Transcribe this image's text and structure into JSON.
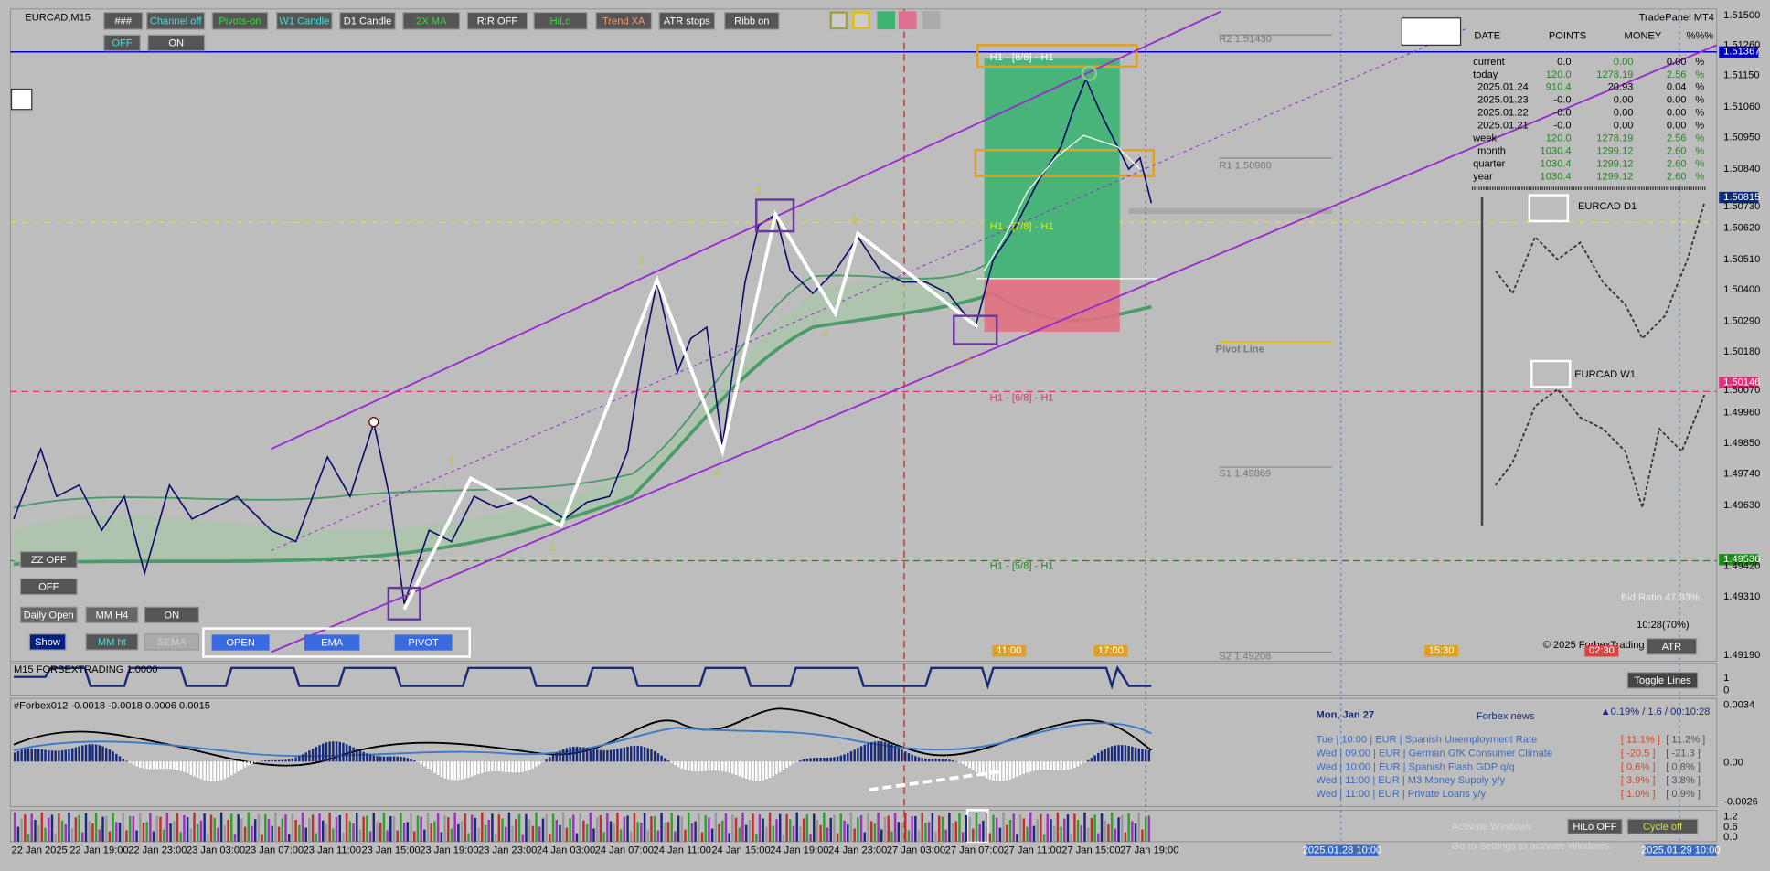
{
  "header": {
    "symbol": "EURCAD,M15",
    "brand": "TradePanel MT4"
  },
  "toolbar": [
    "###",
    "Channel off",
    "Pivots-on",
    "W1 Candle",
    "D1 Candle",
    "2X MA",
    "R:R OFF",
    "HiLo",
    "Trend XA",
    "ATR stops",
    "Ribb on"
  ],
  "toolbar2": [
    "OFF",
    "ON"
  ],
  "left_buttons": [
    "ZZ OFF",
    "OFF",
    "Daily Open",
    "MM H4",
    "ON",
    "Show",
    "MM ht",
    "SEMA"
  ],
  "bottom_buttons": [
    "OPEN",
    "EMA",
    "PIVOT"
  ],
  "wave_labels": [
    "1",
    "2",
    "3",
    "4",
    "5",
    "a",
    "b",
    "c"
  ],
  "levels": [
    "H1 - [8/8] - H1",
    "H1 - [7/8] - H1",
    "H1 - [6/8] - H1",
    "H1 - [5/8] - H1",
    "R2 1.51430",
    "R1 1.50980",
    "Pivot Line",
    "S1 1.49869",
    "S2 1.49208"
  ],
  "price_axis": [
    "1.51500",
    "1.51367",
    "1.51260",
    "1.51150",
    "1.51060",
    "1.50950",
    "1.50840",
    "1.50815",
    "1.50730",
    "1.50620",
    "1.50510",
    "1.50400",
    "1.50290",
    "1.50180",
    "1.50146",
    "1.50070",
    "1.49960",
    "1.49850",
    "1.49740",
    "1.49630",
    "1.49536",
    "1.49420",
    "1.49310",
    "1.49190"
  ],
  "indicator_axis": [
    "1",
    "0",
    "0.0034",
    "0.00",
    "-0.0026",
    "1.2",
    "0.6",
    "0.0"
  ],
  "stats": {
    "headers": [
      "DATE",
      "POINTS",
      "MONEY",
      "%%",
      "%"
    ],
    "rows": [
      [
        "current",
        "0.0",
        "0.00",
        "0.00",
        "%"
      ],
      [
        "today",
        "120.0",
        "1278.19",
        "2.56",
        "%"
      ],
      [
        "2025.01.24",
        "910.4",
        "20.93",
        "0.04",
        "%"
      ],
      [
        "2025.01.23",
        "-0.0",
        "0.00",
        "0.00",
        "%"
      ],
      [
        "2025.01.22",
        "-0.0",
        "0.00",
        "0.00",
        "%"
      ],
      [
        "2025.01.21",
        "-0.0",
        "0.00",
        "0.00",
        "%"
      ],
      [
        "week",
        "120.0",
        "1278.19",
        "2.56",
        "%"
      ],
      [
        "month",
        "1030.4",
        "1299.12",
        "2.60",
        "%"
      ],
      [
        "quarter",
        "1030.4",
        "1299.12",
        "2.60",
        "%"
      ],
      [
        "year",
        "1030.4",
        "1299.12",
        "2.60",
        "%"
      ]
    ]
  },
  "mini_charts": [
    "EURCAD D1",
    "EURCAD W1"
  ],
  "info": [
    "Bid Ratio 47.93%",
    "10:28(70%)",
    "© 2025 ForbexTrading",
    "ATR"
  ],
  "time_markers": [
    "11:00",
    "17:00",
    "15:30",
    "02:30"
  ],
  "indicators": [
    "M15 FORBEXTRADING 1.0000",
    "#Forbex012 -0.0018 -0.0018 0.0006 0.0015"
  ],
  "indicator_buttons": [
    "Toggle Lines",
    "HiLo OFF",
    "Cycle off"
  ],
  "news": {
    "date": "Mon, Jan 27",
    "title": "Forbex news",
    "status": "▲0.19% / 1.6 / 00:10:28",
    "rows": [
      [
        "Tue | 10:00 | EUR | Spanish Unemployment Rate",
        "[ 11.1% ]",
        "[ 11.2% ]"
      ],
      [
        "Wed | 09:00 | EUR | German GfK Consumer Climate",
        "[ -20.5 ]",
        "[ -21.3 ]"
      ],
      [
        "Wed | 10:00 | EUR | Spanish Flash GDP q/q",
        "[ 0.6% ]",
        "[ 0.8% ]"
      ],
      [
        "Wed | 11:00 | EUR | M3 Money Supply y/y",
        "[ 3.9% ]",
        "[ 3.8% ]"
      ],
      [
        "Wed | 11:00 | EUR | Private Loans y/y",
        "[ 1.0% ]",
        "[ 0.9% ]"
      ]
    ]
  },
  "time_axis": [
    "22 Jan 2025",
    "22 Jan 19:00",
    "22 Jan 23:00",
    "23 Jan 03:00",
    "23 Jan 07:00",
    "23 Jan 11:00",
    "23 Jan 15:00",
    "23 Jan 19:00",
    "23 Jan 23:00",
    "24 Jan 03:00",
    "24 Jan 07:00",
    "24 Jan 11:00",
    "24 Jan 15:00",
    "24 Jan 19:00",
    "24 Jan 23:00",
    "27 Jan 03:00",
    "27 Jan 07:00",
    "27 Jan 11:00",
    "27 Jan 15:00",
    "27 Jan 19:00"
  ],
  "time_boxes": [
    "2025.01.28 10:00",
    "2025.01.29 10:00"
  ],
  "watermark": [
    "Activate Windows",
    "Go to Settings to activate Windows."
  ]
}
